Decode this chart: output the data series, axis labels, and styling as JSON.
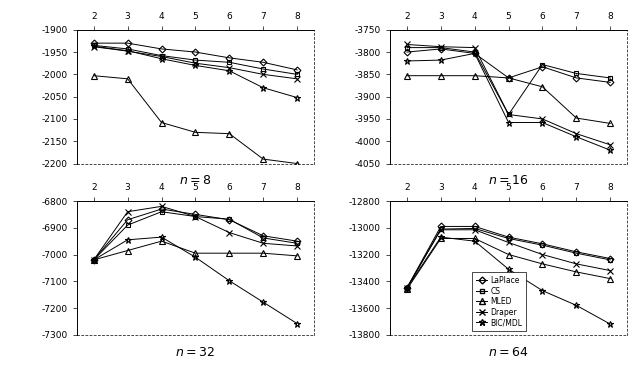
{
  "x": [
    2,
    3,
    4,
    5,
    6,
    7,
    8
  ],
  "panels": [
    {
      "title": "8",
      "ylim": [
        -2200,
        -1900
      ],
      "yticks": [
        -2200,
        -2150,
        -2100,
        -2050,
        -2000,
        -1950,
        -1900
      ],
      "series": {
        "LaPlace": [
          -1930,
          -1930,
          -1943,
          -1950,
          -1963,
          -1973,
          -1990
        ],
        "CS": [
          -1935,
          -1943,
          -1958,
          -1968,
          -1973,
          -1988,
          -2000
        ],
        "MLED": [
          -2003,
          -2010,
          -2108,
          -2130,
          -2133,
          -2190,
          -2200
        ],
        "Draper": [
          -1938,
          -1948,
          -1960,
          -1975,
          -1985,
          -2000,
          -2010
        ],
        "BIC_MDL": [
          -1937,
          -1947,
          -1965,
          -1980,
          -1992,
          -2030,
          -2052
        ]
      }
    },
    {
      "title": "16",
      "ylim": [
        -4050,
        -3750
      ],
      "yticks": [
        -4050,
        -4000,
        -3950,
        -3900,
        -3850,
        -3800,
        -3750
      ],
      "series": {
        "LaPlace": [
          -3800,
          -3793,
          -3803,
          -3858,
          -3833,
          -3858,
          -3868
        ],
        "CS": [
          -3790,
          -3790,
          -3800,
          -3940,
          -3828,
          -3848,
          -3858
        ],
        "MLED": [
          -3853,
          -3853,
          -3853,
          -3858,
          -3878,
          -3948,
          -3960
        ],
        "Draper": [
          -3783,
          -3788,
          -3790,
          -3940,
          -3950,
          -3983,
          -4008
        ],
        "BIC_MDL": [
          -3820,
          -3818,
          -3803,
          -3958,
          -3958,
          -3990,
          -4020
        ]
      }
    },
    {
      "title": "32",
      "ylim": [
        -7300,
        -6800
      ],
      "yticks": [
        -7300,
        -7200,
        -7100,
        -7000,
        -6900,
        -6800
      ],
      "series": {
        "LaPlace": [
          -7020,
          -6870,
          -6830,
          -6850,
          -6870,
          -6930,
          -6950
        ],
        "CS": [
          -7020,
          -6890,
          -6840,
          -6858,
          -6868,
          -6938,
          -6958
        ],
        "MLED": [
          -7020,
          -6985,
          -6950,
          -6995,
          -6995,
          -6995,
          -7005
        ],
        "Draper": [
          -7020,
          -6840,
          -6820,
          -6858,
          -6918,
          -6958,
          -6968
        ],
        "BIC_MDL": [
          -7020,
          -6945,
          -6935,
          -7010,
          -7098,
          -7178,
          -7258
        ]
      }
    },
    {
      "title": "64",
      "ylim": [
        -13800,
        -12800
      ],
      "yticks": [
        -13800,
        -13600,
        -13400,
        -13200,
        -13000,
        -12800
      ],
      "series": {
        "LaPlace": [
          -13450,
          -12990,
          -12990,
          -13070,
          -13120,
          -13180,
          -13230
        ],
        "CS": [
          -13450,
          -13010,
          -13005,
          -13080,
          -13130,
          -13190,
          -13240
        ],
        "MLED": [
          -13460,
          -13080,
          -13080,
          -13200,
          -13270,
          -13330,
          -13380
        ],
        "Draper": [
          -13450,
          -13015,
          -13015,
          -13110,
          -13200,
          -13270,
          -13320
        ],
        "BIC_MDL": [
          -13450,
          -13070,
          -13100,
          -13310,
          -13470,
          -13580,
          -13720
        ]
      }
    }
  ],
  "series_keys": [
    "LaPlace",
    "CS",
    "MLED",
    "Draper",
    "BIC_MDL"
  ],
  "markers": {
    "LaPlace": "D",
    "CS": "s",
    "MLED": "^",
    "Draper": "x",
    "BIC_MDL": "*"
  },
  "markersizes": {
    "LaPlace": 3.5,
    "CS": 3.5,
    "MLED": 4.0,
    "Draper": 4.5,
    "BIC_MDL": 5.0
  },
  "legend_labels": [
    "LaPlace",
    "CS",
    "MLED",
    "Draper",
    "BIC/MDL"
  ]
}
